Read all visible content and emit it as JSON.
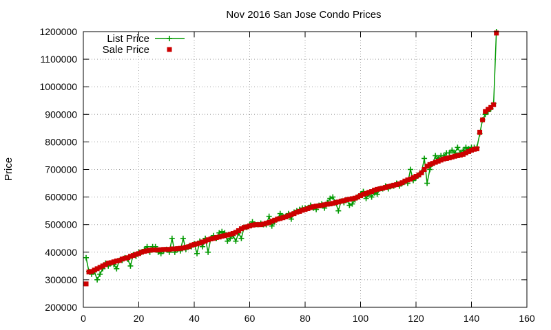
{
  "chart_data": {
    "type": "line",
    "title": "Nov 2016 San Jose Condo Prices",
    "xlabel": "",
    "ylabel": "Price",
    "xlim": [
      0,
      160
    ],
    "ylim": [
      200000,
      1200000
    ],
    "x_ticks": [
      0,
      20,
      40,
      60,
      80,
      100,
      120,
      140,
      160
    ],
    "y_ticks": [
      200000,
      300000,
      400000,
      500000,
      600000,
      700000,
      800000,
      900000,
      1000000,
      1100000,
      1200000
    ],
    "grid": true,
    "legend_position": "top-left",
    "series": [
      {
        "name": "List Price",
        "color": "#009900",
        "marker": "plus",
        "line": true,
        "x": [
          1,
          2,
          3,
          4,
          5,
          6,
          7,
          8,
          9,
          10,
          11,
          12,
          13,
          14,
          15,
          16,
          17,
          18,
          19,
          20,
          21,
          22,
          23,
          24,
          25,
          26,
          27,
          28,
          29,
          30,
          31,
          32,
          33,
          34,
          35,
          36,
          37,
          38,
          39,
          40,
          41,
          42,
          43,
          44,
          45,
          46,
          47,
          48,
          49,
          50,
          51,
          52,
          53,
          54,
          55,
          56,
          57,
          58,
          59,
          60,
          61,
          62,
          63,
          64,
          65,
          66,
          67,
          68,
          69,
          70,
          71,
          72,
          73,
          74,
          75,
          76,
          77,
          78,
          79,
          80,
          81,
          82,
          83,
          84,
          85,
          86,
          87,
          88,
          89,
          90,
          91,
          92,
          93,
          94,
          95,
          96,
          97,
          98,
          99,
          100,
          101,
          102,
          103,
          104,
          105,
          106,
          107,
          108,
          109,
          110,
          111,
          112,
          113,
          114,
          115,
          116,
          117,
          118,
          119,
          120,
          121,
          122,
          123,
          124,
          125,
          126,
          127,
          128,
          129,
          130,
          131,
          132,
          133,
          134,
          135,
          136,
          137,
          138,
          139,
          140,
          141,
          142,
          143,
          144,
          145,
          146,
          147,
          148,
          149
        ],
        "y": [
          380000,
          330000,
          320000,
          330000,
          300000,
          320000,
          340000,
          360000,
          350000,
          360000,
          355000,
          340000,
          370000,
          370000,
          380000,
          375000,
          350000,
          390000,
          385000,
          400000,
          400000,
          410000,
          420000,
          400000,
          420000,
          420000,
          400000,
          395000,
          405000,
          410000,
          400000,
          450000,
          400000,
          410000,
          405000,
          450000,
          410000,
          420000,
          420000,
          430000,
          395000,
          440000,
          420000,
          450000,
          400000,
          450000,
          460000,
          450000,
          470000,
          475000,
          470000,
          440000,
          450000,
          460000,
          440000,
          470000,
          450000,
          490000,
          490000,
          500000,
          510000,
          500000,
          500000,
          505000,
          500000,
          500000,
          530000,
          495000,
          510000,
          520000,
          540000,
          530000,
          530000,
          540000,
          520000,
          545000,
          550000,
          555000,
          560000,
          560000,
          560000,
          570000,
          560000,
          555000,
          570000,
          575000,
          560000,
          580000,
          595000,
          600000,
          580000,
          550000,
          585000,
          580000,
          590000,
          570000,
          575000,
          590000,
          600000,
          610000,
          620000,
          595000,
          610000,
          600000,
          615000,
          610000,
          630000,
          630000,
          640000,
          630000,
          640000,
          640000,
          650000,
          640000,
          650000,
          655000,
          650000,
          700000,
          660000,
          670000,
          680000,
          690000,
          740000,
          650000,
          700000,
          720000,
          750000,
          740000,
          750000,
          750000,
          760000,
          760000,
          770000,
          760000,
          780000,
          760000,
          770000,
          780000,
          775000,
          780000,
          780000,
          780000,
          830000,
          880000,
          900000,
          910000,
          920000,
          940000,
          1200000
        ]
      },
      {
        "name": "Sale Price",
        "color": "#cc0000",
        "marker": "square",
        "line": false,
        "x": [
          1,
          2,
          3,
          4,
          5,
          6,
          7,
          8,
          9,
          10,
          11,
          12,
          13,
          14,
          15,
          16,
          17,
          18,
          19,
          20,
          21,
          22,
          23,
          24,
          25,
          26,
          27,
          28,
          29,
          30,
          31,
          32,
          33,
          34,
          35,
          36,
          37,
          38,
          39,
          40,
          41,
          42,
          43,
          44,
          45,
          46,
          47,
          48,
          49,
          50,
          51,
          52,
          53,
          54,
          55,
          56,
          57,
          58,
          59,
          60,
          61,
          62,
          63,
          64,
          65,
          66,
          67,
          68,
          69,
          70,
          71,
          72,
          73,
          74,
          75,
          76,
          77,
          78,
          79,
          80,
          81,
          82,
          83,
          84,
          85,
          86,
          87,
          88,
          89,
          90,
          91,
          92,
          93,
          94,
          95,
          96,
          97,
          98,
          99,
          100,
          101,
          102,
          103,
          104,
          105,
          106,
          107,
          108,
          109,
          110,
          111,
          112,
          113,
          114,
          115,
          116,
          117,
          118,
          119,
          120,
          121,
          122,
          123,
          124,
          125,
          126,
          127,
          128,
          129,
          130,
          131,
          132,
          133,
          134,
          135,
          136,
          137,
          138,
          139,
          140,
          141,
          142,
          143,
          144,
          145,
          146,
          147,
          148,
          149
        ],
        "y": [
          285000,
          328000,
          330000,
          335000,
          340000,
          345000,
          350000,
          355000,
          360000,
          362000,
          365000,
          368000,
          370000,
          375000,
          378000,
          380000,
          385000,
          388000,
          392000,
          395000,
          400000,
          403000,
          405000,
          407000,
          408000,
          408000,
          408000,
          409000,
          410000,
          410000,
          410000,
          412000,
          412000,
          413000,
          414000,
          415000,
          418000,
          420000,
          425000,
          428000,
          430000,
          433000,
          437000,
          440000,
          445000,
          448000,
          450000,
          453000,
          455000,
          458000,
          460000,
          462000,
          465000,
          468000,
          472000,
          478000,
          485000,
          490000,
          492000,
          495000,
          498000,
          500000,
          500000,
          500000,
          502000,
          505000,
          508000,
          512000,
          516000,
          520000,
          522000,
          525000,
          528000,
          532000,
          536000,
          540000,
          545000,
          548000,
          552000,
          555000,
          558000,
          562000,
          565000,
          567000,
          568000,
          570000,
          572000,
          574000,
          575000,
          577000,
          580000,
          582000,
          585000,
          587000,
          590000,
          592000,
          594000,
          596000,
          600000,
          605000,
          610000,
          613000,
          617000,
          620000,
          625000,
          628000,
          630000,
          632000,
          635000,
          638000,
          640000,
          643000,
          645000,
          648000,
          652000,
          658000,
          662000,
          665000,
          670000,
          675000,
          680000,
          688000,
          700000,
          712000,
          718000,
          722000,
          726000,
          730000,
          734000,
          738000,
          740000,
          742000,
          745000,
          748000,
          750000,
          752000,
          755000,
          760000,
          765000,
          770000,
          773000,
          775000,
          835000,
          880000,
          910000,
          918000,
          925000,
          935000,
          1195000
        ]
      }
    ]
  }
}
